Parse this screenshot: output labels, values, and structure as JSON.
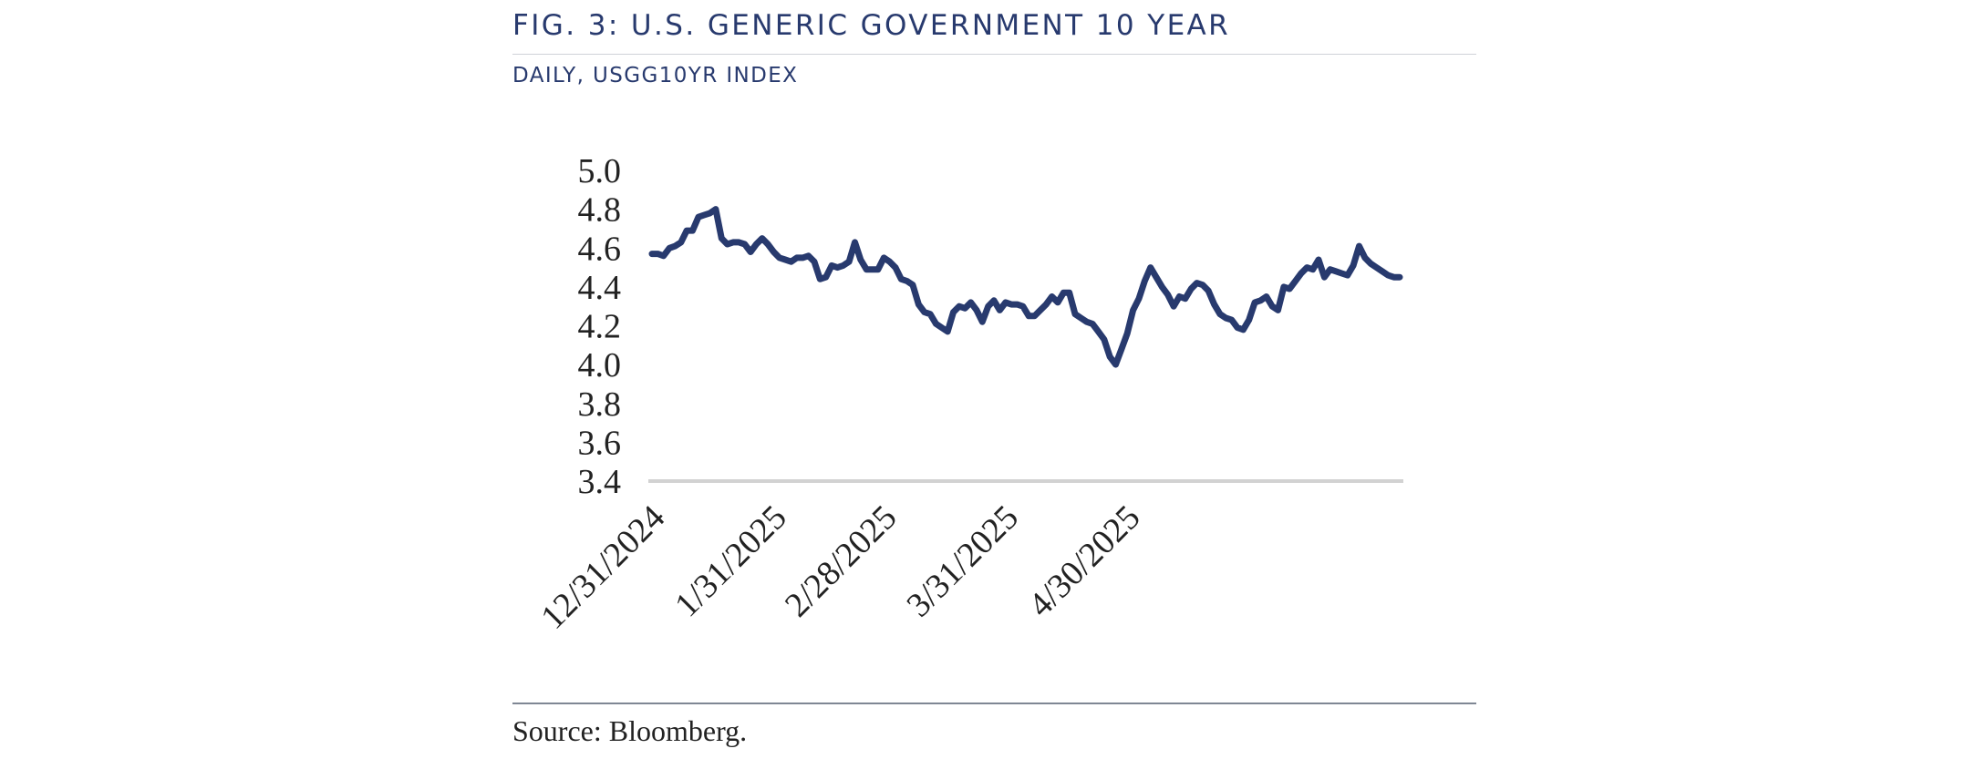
{
  "figure": {
    "title": "FIG. 3: U.S. GENERIC GOVERNMENT 10 YEAR",
    "subtitle": "DAILY, USGG10YR INDEX",
    "source": "Source: Bloomberg."
  },
  "colors": {
    "series": "#283a6e",
    "title": "#283a6e",
    "baseline": "#d2d2d2",
    "rule": "#7f8794"
  },
  "chart_data": {
    "type": "line",
    "title": "FIG. 3: U.S. GENERIC GOVERNMENT 10 YEAR",
    "subtitle": "DAILY, USGG10YR INDEX",
    "xlabel": "",
    "ylabel": "",
    "ylim": [
      3.4,
      5.0
    ],
    "yticks": [
      "5.0",
      "4.8",
      "4.6",
      "4.4",
      "4.2",
      "4.0",
      "3.8",
      "3.6",
      "3.4"
    ],
    "xticks": [
      {
        "label": "12/31/2024",
        "index": 0
      },
      {
        "label": "1/31/2025",
        "index": 21
      },
      {
        "label": "2/28/2025",
        "index": 40
      },
      {
        "label": "3/31/2025",
        "index": 61
      },
      {
        "label": "4/30/2025",
        "index": 82
      }
    ],
    "grid": false,
    "legend": "none",
    "series": [
      {
        "name": "USGG10YR",
        "values": [
          4.57,
          4.57,
          4.56,
          4.6,
          4.61,
          4.63,
          4.69,
          4.69,
          4.76,
          4.77,
          4.78,
          4.8,
          4.65,
          4.62,
          4.63,
          4.63,
          4.62,
          4.58,
          4.62,
          4.65,
          4.62,
          4.58,
          4.55,
          4.54,
          4.53,
          4.55,
          4.55,
          4.56,
          4.53,
          4.44,
          4.45,
          4.51,
          4.5,
          4.51,
          4.53,
          4.63,
          4.54,
          4.49,
          4.49,
          4.49,
          4.55,
          4.53,
          4.5,
          4.44,
          4.43,
          4.41,
          4.31,
          4.27,
          4.26,
          4.21,
          4.19,
          4.17,
          4.27,
          4.3,
          4.29,
          4.32,
          4.28,
          4.22,
          4.3,
          4.33,
          4.28,
          4.32,
          4.31,
          4.31,
          4.3,
          4.25,
          4.25,
          4.28,
          4.31,
          4.35,
          4.32,
          4.37,
          4.37,
          4.26,
          4.24,
          4.22,
          4.21,
          4.17,
          4.13,
          4.04,
          4.0,
          4.08,
          4.16,
          4.28,
          4.34,
          4.43,
          4.5,
          4.45,
          4.4,
          4.36,
          4.3,
          4.35,
          4.34,
          4.39,
          4.42,
          4.41,
          4.38,
          4.31,
          4.26,
          4.24,
          4.23,
          4.19,
          4.18,
          4.23,
          4.32,
          4.33,
          4.35,
          4.3,
          4.28,
          4.4,
          4.39,
          4.43,
          4.47,
          4.5,
          4.49,
          4.54,
          4.45,
          4.49,
          4.48,
          4.47,
          4.46,
          4.51,
          4.61,
          4.55,
          4.52,
          4.5,
          4.48,
          4.46,
          4.45,
          4.45
        ]
      }
    ]
  }
}
